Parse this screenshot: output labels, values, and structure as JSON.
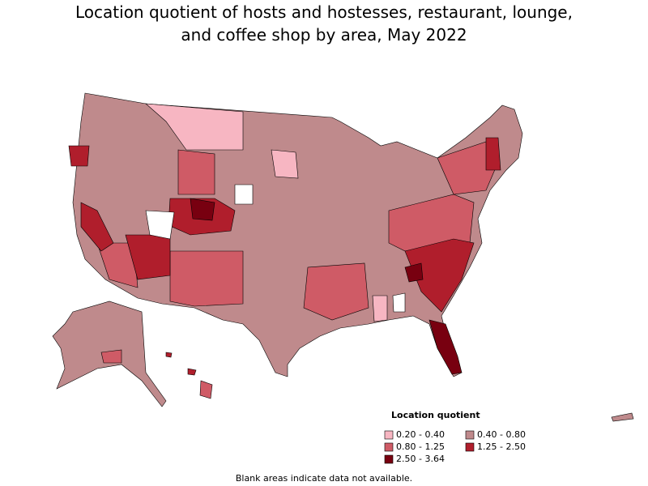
{
  "title": [
    "Location quotient of hosts and hostesses, restaurant, lounge,",
    "and coffee shop by area, May 2022"
  ],
  "legend": {
    "title": "Location quotient",
    "items": [
      {
        "label": "0.20 - 0.40",
        "color": "#f7b6c2"
      },
      {
        "label": "0.40 - 0.80",
        "color": "#bf8a8c"
      },
      {
        "label": "0.80 - 1.25",
        "color": "#cf5b66"
      },
      {
        "label": "1.25 - 2.50",
        "color": "#b01e2c"
      },
      {
        "label": "2.50 - 3.64",
        "color": "#780010"
      }
    ]
  },
  "note": "Blank areas indicate data not available."
}
